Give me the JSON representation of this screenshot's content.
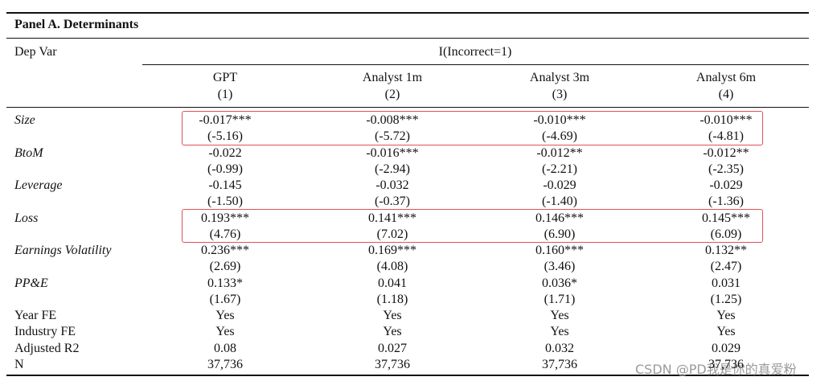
{
  "panel_title": "Panel A. Determinants",
  "dep_var_label": "Dep Var",
  "dep_var": "I(Incorrect=1)",
  "columns": [
    {
      "name": "GPT",
      "number": "(1)"
    },
    {
      "name": "Analyst 1m",
      "number": "(2)"
    },
    {
      "name": "Analyst 3m",
      "number": "(3)"
    },
    {
      "name": "Analyst 6m",
      "number": "(4)"
    }
  ],
  "variables": [
    {
      "label": "Size",
      "coefficients": [
        "-0.017***",
        "-0.008***",
        "-0.010***",
        "-0.010***"
      ],
      "t_stats": [
        "(-5.16)",
        "(-5.72)",
        "(-4.69)",
        "(-4.81)"
      ],
      "highlighted": true
    },
    {
      "label": "BtoM",
      "coefficients": [
        "-0.022",
        "-0.016***",
        "-0.012**",
        "-0.012**"
      ],
      "t_stats": [
        "(-0.99)",
        "(-2.94)",
        "(-2.21)",
        "(-2.35)"
      ],
      "highlighted": false
    },
    {
      "label": "Leverage",
      "coefficients": [
        "-0.145",
        "-0.032",
        "-0.029",
        "-0.029"
      ],
      "t_stats": [
        "(-1.50)",
        "(-0.37)",
        "(-1.40)",
        "(-1.36)"
      ],
      "highlighted": false
    },
    {
      "label": "Loss",
      "coefficients": [
        "0.193***",
        "0.141***",
        "0.146***",
        "0.145***"
      ],
      "t_stats": [
        "(4.76)",
        "(7.02)",
        "(6.90)",
        "(6.09)"
      ],
      "highlighted": true
    },
    {
      "label": "Earnings Volatility",
      "coefficients": [
        "0.236***",
        "0.169***",
        "0.160***",
        "0.132**"
      ],
      "t_stats": [
        "(2.69)",
        "(4.08)",
        "(3.46)",
        "(2.47)"
      ],
      "highlighted": false
    },
    {
      "label": "PP&E",
      "coefficients": [
        "0.133*",
        "0.041",
        "0.036*",
        "0.031"
      ],
      "t_stats": [
        "(1.67)",
        "(1.18)",
        "(1.71)",
        "(1.25)"
      ],
      "highlighted": false
    }
  ],
  "summary_rows": [
    {
      "label": "Year FE",
      "values": [
        "Yes",
        "Yes",
        "Yes",
        "Yes"
      ]
    },
    {
      "label": "Industry FE",
      "values": [
        "Yes",
        "Yes",
        "Yes",
        "Yes"
      ]
    },
    {
      "label": "Adjusted R2",
      "values": [
        "0.08",
        "0.027",
        "0.032",
        "0.029"
      ]
    },
    {
      "label": "N",
      "values": [
        "37,736",
        "37,736",
        "37,736",
        "37,736"
      ]
    }
  ],
  "watermark": "CSDN @PD我是你的真爱粉"
}
